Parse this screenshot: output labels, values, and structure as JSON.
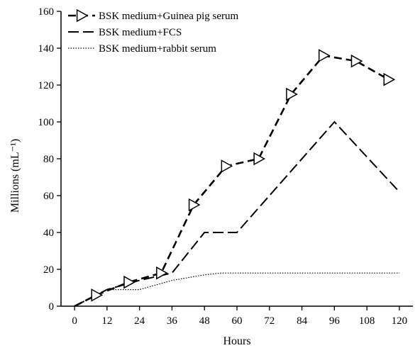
{
  "chart_data": {
    "type": "line",
    "title": "",
    "xlabel": "Hours",
    "ylabel": "Millions (mL⁻¹)",
    "x_ticks": [
      0,
      12,
      24,
      36,
      48,
      60,
      72,
      84,
      96,
      108,
      120
    ],
    "y_ticks": [
      0,
      20,
      40,
      60,
      80,
      100,
      120,
      140,
      160
    ],
    "xlim": [
      -5,
      125
    ],
    "ylim": [
      0,
      160
    ],
    "grid": false,
    "legend_position": "top-left",
    "series": [
      {
        "name": "BSK medium+Guinea pig serum",
        "line_style": "dashed",
        "marker": "triangle",
        "color": "#000000",
        "x": [
          0,
          8,
          20,
          32,
          44,
          56,
          68,
          80,
          92,
          104,
          116
        ],
        "y": [
          0,
          6,
          13,
          18,
          55,
          76,
          80,
          115,
          136,
          133,
          123
        ]
      },
      {
        "name": "BSK medium+FCS",
        "line_style": "long-dash",
        "marker": "none",
        "color": "#000000",
        "x": [
          0,
          12,
          24,
          36,
          48,
          60,
          96,
          120
        ],
        "y": [
          0,
          9,
          14,
          18,
          40,
          40,
          100,
          62
        ]
      },
      {
        "name": "BSK medium+rabbit serum",
        "line_style": "dotted",
        "marker": "none",
        "color": "#000000",
        "x": [
          0,
          12,
          24,
          36,
          48,
          54,
          60,
          72,
          84,
          96,
          108,
          120
        ],
        "y": [
          0,
          9,
          9,
          14,
          17,
          18,
          18,
          18,
          18,
          18,
          18,
          18
        ]
      }
    ]
  }
}
